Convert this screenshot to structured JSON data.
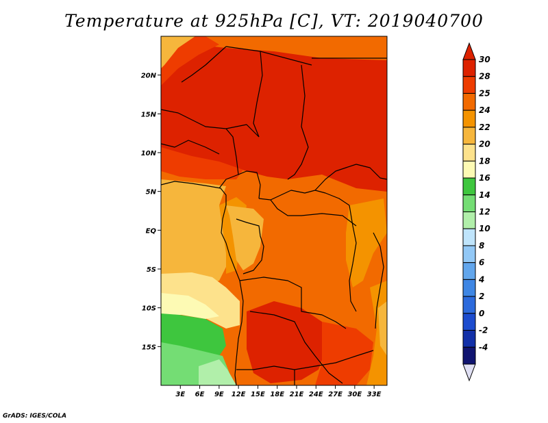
{
  "title": "Temperature at 925hPa [C], VT: 2019040700",
  "credit": "GrADS: IGES/COLA",
  "map": {
    "lon_range": [
      0,
      35
    ],
    "lat_range": [
      -20,
      25
    ],
    "lat_ticks": [
      {
        "value": 20,
        "label": "20N"
      },
      {
        "value": 15,
        "label": "15N"
      },
      {
        "value": 10,
        "label": "10N"
      },
      {
        "value": 5,
        "label": "5N"
      },
      {
        "value": 0,
        "label": "EQ"
      },
      {
        "value": -5,
        "label": "5S"
      },
      {
        "value": -10,
        "label": "10S"
      },
      {
        "value": -15,
        "label": "15S"
      }
    ],
    "lon_ticks": [
      {
        "value": 3,
        "label": "3E"
      },
      {
        "value": 6,
        "label": "6E"
      },
      {
        "value": 9,
        "label": "9E"
      },
      {
        "value": 12,
        "label": "12E"
      },
      {
        "value": 15,
        "label": "15E"
      },
      {
        "value": 18,
        "label": "18E"
      },
      {
        "value": 21,
        "label": "21E"
      },
      {
        "value": 24,
        "label": "24E"
      },
      {
        "value": 27,
        "label": "27E"
      },
      {
        "value": 30,
        "label": "30E"
      },
      {
        "value": 33,
        "label": "33E"
      }
    ]
  },
  "colorbar": {
    "levels": [
      "30",
      "28",
      "25",
      "24",
      "22",
      "20",
      "18",
      "16",
      "14",
      "12",
      "10",
      "8",
      "6",
      "4",
      "2",
      "0",
      "-2",
      "-4"
    ],
    "colors": [
      "#dd2200",
      "#ee3c00",
      "#f26a00",
      "#f49300",
      "#f6b63c",
      "#fde28c",
      "#fdfab4",
      "#3ec63e",
      "#74dd74",
      "#b1efaa",
      "#bfe4fb",
      "#92c8f6",
      "#62a6ec",
      "#3e86e4",
      "#2c6adc",
      "#1c4cce",
      "#1230a8",
      "#101470"
    ],
    "top_color": "#dd2200",
    "bottom_color": "#e0e0f4"
  }
}
